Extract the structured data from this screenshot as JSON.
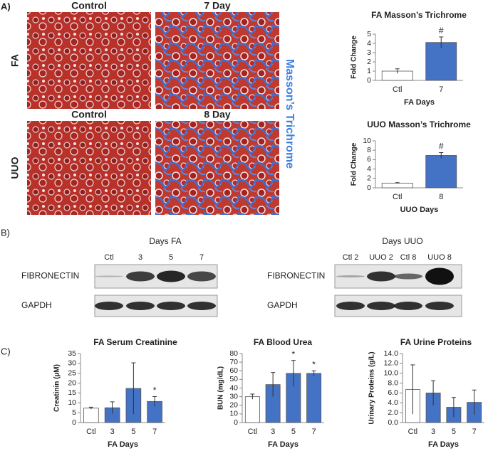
{
  "figure": {
    "panel_labels": [
      "A)",
      "B)",
      "C)"
    ],
    "histology": {
      "columns_fa": [
        "Control",
        "7 Day"
      ],
      "columns_uuo": [
        "Control",
        "8 Day"
      ],
      "rows": [
        "FA",
        "UUO"
      ],
      "stain": "Masson’s Trichrome"
    },
    "blots": [
      {
        "title": "Days FA",
        "lanes": [
          "Ctl",
          "3",
          "5",
          "7"
        ],
        "proteins": [
          "FIBRONECTIN",
          "GAPDH"
        ]
      },
      {
        "title": "Days UUO",
        "lanes": [
          "Ctl 2",
          "UUO 2",
          "Ctl 8",
          "UUO 8"
        ],
        "proteins": [
          "FIBRONECTIN",
          "GAPDH"
        ]
      }
    ]
  },
  "chart_data": [
    {
      "type": "bar",
      "title": "FA Masson’s Trichrome",
      "xlabel": "FA Days",
      "ylabel": "Fold Change",
      "categories": [
        "Ctl",
        "7"
      ],
      "values": [
        1,
        4.1
      ],
      "errors": [
        0.25,
        0.6
      ],
      "colors": [
        "#ffffff",
        "#4472c4"
      ],
      "annotations": [
        null,
        "#"
      ],
      "ylim": [
        0,
        5
      ],
      "yticks": [
        0,
        1,
        2,
        3,
        4,
        5
      ]
    },
    {
      "type": "bar",
      "title": "UUO Masson’s Trichrome",
      "xlabel": "UUO Days",
      "ylabel": "Fold Change",
      "categories": [
        "Ctl",
        "8"
      ],
      "values": [
        1,
        6.9
      ],
      "errors": [
        0.1,
        0.6
      ],
      "colors": [
        "#ffffff",
        "#4472c4"
      ],
      "annotations": [
        null,
        "#"
      ],
      "ylim": [
        0,
        10
      ],
      "yticks": [
        0,
        2,
        4,
        6,
        8,
        10
      ]
    },
    {
      "type": "bar",
      "title": "FA Serum Creatinine",
      "xlabel": "FA Days",
      "ylabel": "Creatinin (µM)",
      "categories": [
        "Ctl",
        "3",
        "5",
        "7"
      ],
      "values": [
        7.3,
        7.5,
        17.3,
        10.7
      ],
      "errors": [
        0.5,
        3,
        13,
        2.5
      ],
      "colors": [
        "#ffffff",
        "#4472c4",
        "#4472c4",
        "#4472c4"
      ],
      "annotations": [
        null,
        null,
        null,
        "*"
      ],
      "ylim": [
        0,
        35
      ],
      "yticks": [
        0,
        5,
        10,
        15,
        20,
        25,
        30,
        35
      ]
    },
    {
      "type": "bar",
      "title": "FA Blood Urea",
      "xlabel": "FA Days",
      "ylabel": "BUN (mg/dL)",
      "categories": [
        "Ctl",
        "3",
        "5",
        "7"
      ],
      "values": [
        30,
        44,
        57,
        57
      ],
      "errors": [
        3,
        14,
        15,
        3
      ],
      "colors": [
        "#ffffff",
        "#4472c4",
        "#4472c4",
        "#4472c4"
      ],
      "annotations": [
        null,
        null,
        "*",
        "*"
      ],
      "ylim": [
        0,
        80
      ],
      "yticks": [
        0,
        10,
        20,
        30,
        40,
        50,
        60,
        70,
        80
      ]
    },
    {
      "type": "bar",
      "title": "FA Urine Proteins",
      "xlabel": "FA Days",
      "ylabel": "Urinary Proteins (g/L)",
      "categories": [
        "Ctl",
        "3",
        "5",
        "7"
      ],
      "values": [
        6.7,
        6,
        3.1,
        4.1
      ],
      "errors": [
        5,
        2.5,
        2,
        2.5
      ],
      "colors": [
        "#ffffff",
        "#4472c4",
        "#4472c4",
        "#4472c4"
      ],
      "annotations": [
        null,
        null,
        null,
        null
      ],
      "ylim": [
        0,
        14
      ],
      "yticks": [
        {
          "value": 0,
          "label": "0.0"
        },
        {
          "value": 2,
          "label": "2.0"
        },
        {
          "value": 4,
          "label": "4.0"
        },
        {
          "value": 6,
          "label": "6.0"
        },
        {
          "value": 8,
          "label": "8.0"
        },
        {
          "value": 10,
          "label": "10.0"
        },
        {
          "value": 12,
          "label": "12.0"
        },
        {
          "value": 14,
          "label": "14.0"
        }
      ]
    }
  ]
}
